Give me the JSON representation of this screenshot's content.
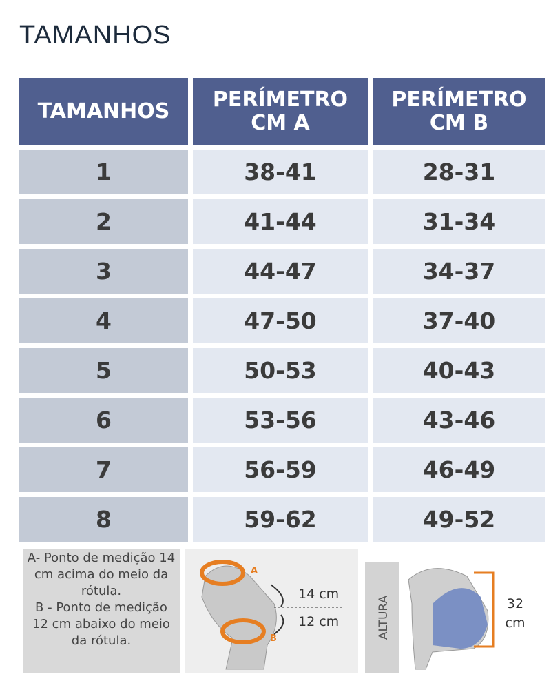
{
  "title": "TAMANHOS",
  "table": {
    "header": [
      "TAMANHOS",
      "PERÍMETRO CM A",
      "PERÍMETRO CM B"
    ],
    "rows": [
      [
        "1",
        "38-41",
        "28-31"
      ],
      [
        "2",
        "41-44",
        "31-34"
      ],
      [
        "3",
        "44-47",
        "34-37"
      ],
      [
        "4",
        "47-50",
        "37-40"
      ],
      [
        "5",
        "50-53",
        "40-43"
      ],
      [
        "6",
        "53-56",
        "43-46"
      ],
      [
        "7",
        "56-59",
        "46-49"
      ],
      [
        "8",
        "59-62",
        "49-52"
      ]
    ]
  },
  "notes": [
    "A- Ponto de medição 14 cm acima do meio da rótula.",
    "B - Ponto de medição 12 cm abaixo do meio da rótula."
  ],
  "diagram": {
    "point_a": "A",
    "point_b": "B",
    "upper": "14 cm",
    "lower": "12 cm",
    "height_label": "ALTURA",
    "height": "32 cm"
  }
}
